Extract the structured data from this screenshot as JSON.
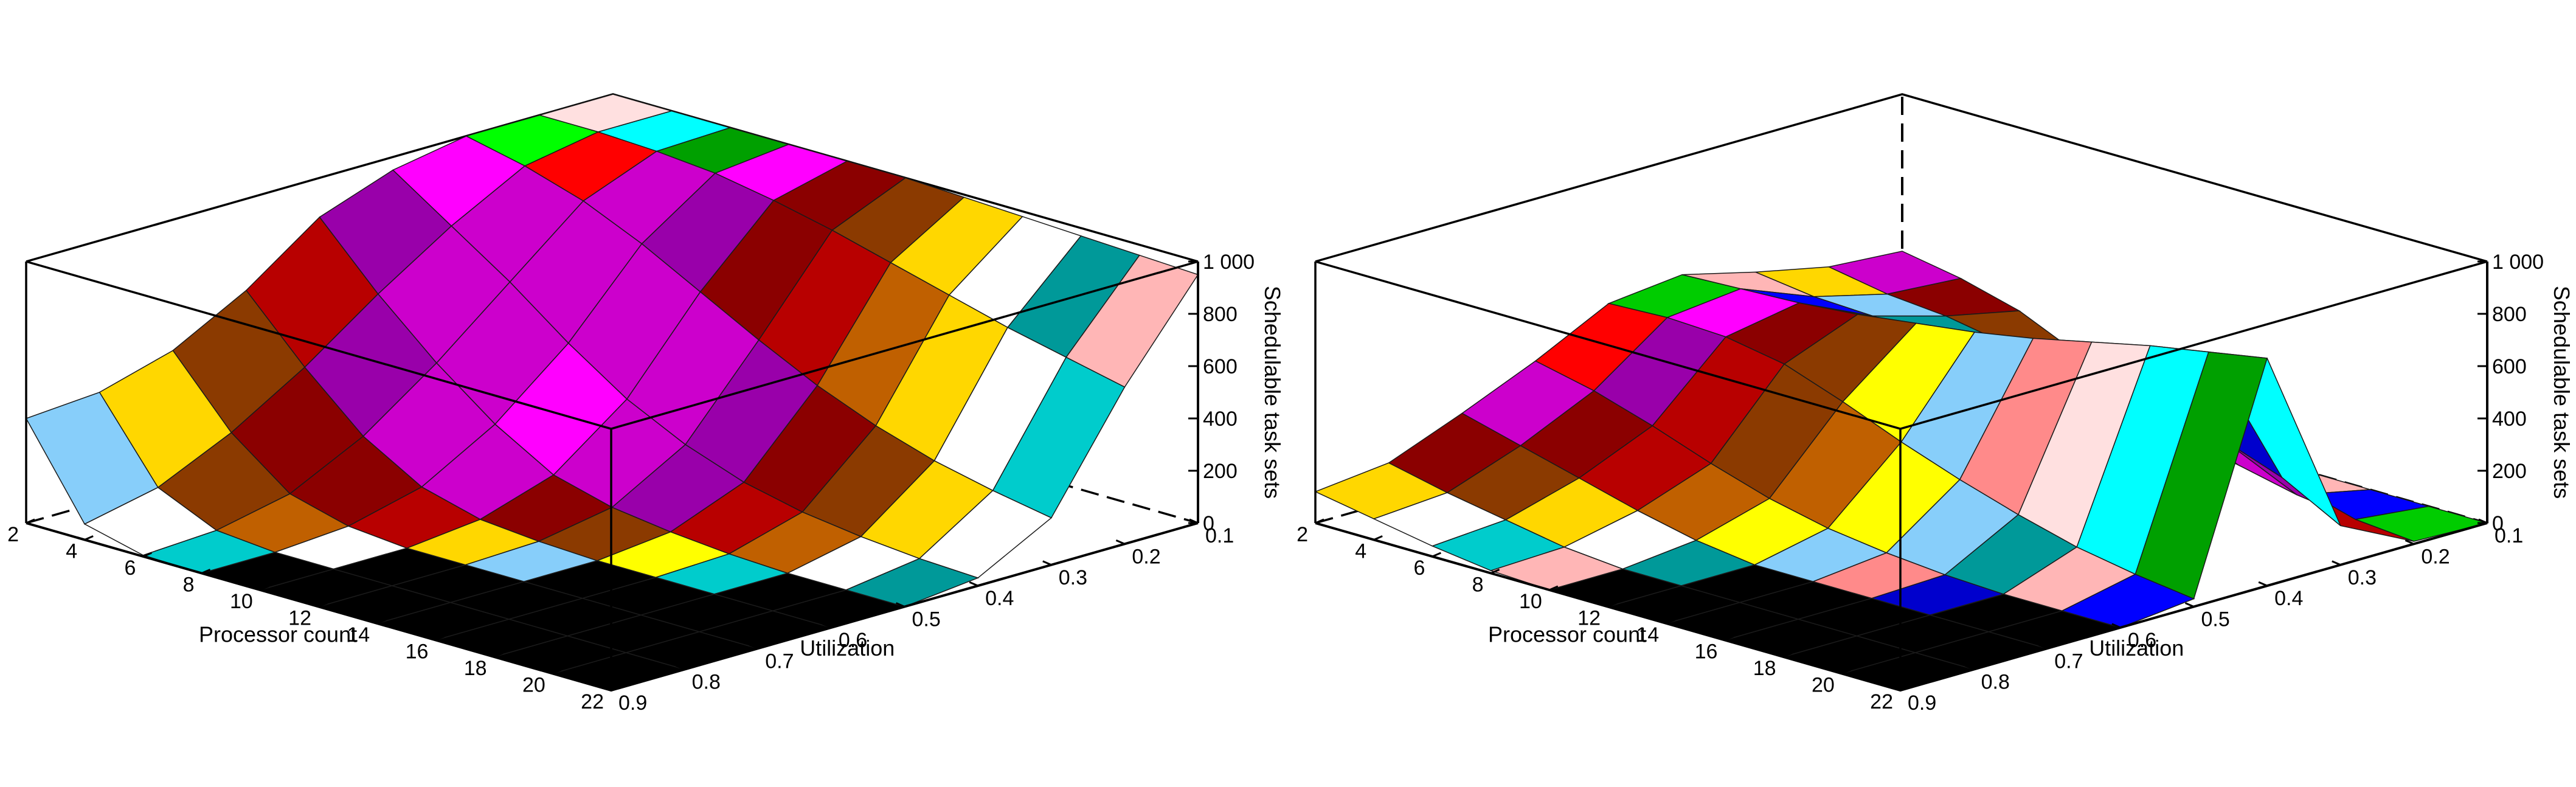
{
  "chart_data": [
    {
      "type": "surface3d",
      "panel": "left",
      "xlabel": "Processor count",
      "ylabel": "Utilization",
      "zlabel": "Schedulable task sets",
      "x_ticks": [
        2,
        4,
        6,
        8,
        10,
        12,
        14,
        16,
        18,
        20,
        22
      ],
      "y_ticks": [
        0.1,
        0.2,
        0.3,
        0.4,
        0.5,
        0.6,
        0.7,
        0.8,
        0.9
      ],
      "z_ticks": [
        "0",
        "200",
        "400",
        "600",
        "800",
        "1 000"
      ],
      "xlim": [
        2,
        22
      ],
      "ylim": [
        0.1,
        0.9
      ],
      "zlim": [
        0,
        1000
      ],
      "processors": [
        2,
        4,
        6,
        8,
        10,
        12,
        14,
        16,
        18,
        20,
        22
      ],
      "utilization": [
        0.1,
        0.2,
        0.3,
        0.4,
        0.5,
        0.6,
        0.7,
        0.8,
        0.9
      ],
      "z": [
        [
          1000,
          1000,
          1000,
          950,
          850,
          650,
          500,
          420,
          400
        ],
        [
          1000,
          1000,
          950,
          800,
          620,
          420,
          250,
          120,
          60
        ],
        [
          1000,
          990,
          880,
          650,
          420,
          220,
          80,
          20,
          5
        ],
        [
          1000,
          970,
          780,
          480,
          250,
          90,
          20,
          0,
          0
        ],
        [
          1000,
          930,
          660,
          330,
          120,
          30,
          0,
          0,
          0
        ],
        [
          1000,
          880,
          540,
          220,
          60,
          10,
          0,
          0,
          0
        ],
        [
          990,
          820,
          430,
          140,
          30,
          0,
          0,
          0,
          0
        ],
        [
          980,
          760,
          340,
          90,
          10,
          0,
          0,
          0,
          0
        ],
        [
          970,
          700,
          270,
          60,
          0,
          0,
          0,
          0,
          0
        ],
        [
          960,
          650,
          220,
          40,
          0,
          0,
          0,
          0,
          0
        ],
        [
          950,
          600,
          180,
          30,
          0,
          0,
          0,
          0,
          0
        ]
      ]
    },
    {
      "type": "surface3d",
      "panel": "right",
      "xlabel": "Processor count",
      "ylabel": "Utilization",
      "zlabel": "Schedulable task sets",
      "x_ticks": [
        2,
        4,
        6,
        8,
        10,
        12,
        14,
        16,
        18,
        20,
        22
      ],
      "y_ticks": [
        0.1,
        0.2,
        0.3,
        0.4,
        0.5,
        0.6,
        0.7,
        0.8,
        0.9
      ],
      "z_ticks": [
        "0",
        "200",
        "400",
        "600",
        "800",
        "1 000"
      ],
      "xlim": [
        2,
        22
      ],
      "ylim": [
        0.1,
        0.9
      ],
      "zlim": [
        0,
        1000
      ],
      "processors": [
        2,
        4,
        6,
        8,
        10,
        12,
        14,
        16,
        18,
        20,
        22
      ],
      "utilization": [
        0.1,
        0.2,
        0.3,
        0.4,
        0.5,
        0.6,
        0.7,
        0.8,
        0.9
      ],
      "z": [
        [
          400,
          420,
          480,
          550,
          520,
          380,
          260,
          150,
          120
        ],
        [
          360,
          380,
          450,
          560,
          530,
          330,
          200,
          100,
          80
        ],
        [
          300,
          360,
          440,
          570,
          520,
          260,
          140,
          60,
          40
        ],
        [
          200,
          320,
          430,
          590,
          480,
          180,
          80,
          20,
          10
        ],
        [
          120,
          270,
          430,
          620,
          400,
          110,
          30,
          0,
          0
        ],
        [
          60,
          220,
          440,
          650,
          310,
          60,
          0,
          0,
          0
        ],
        [
          20,
          160,
          420,
          690,
          230,
          30,
          0,
          0,
          0
        ],
        [
          0,
          110,
          400,
          740,
          160,
          10,
          0,
          0,
          0
        ],
        [
          0,
          60,
          350,
          790,
          100,
          0,
          0,
          0,
          0
        ],
        [
          0,
          30,
          270,
          830,
          60,
          0,
          0,
          0,
          0
        ],
        [
          0,
          10,
          150,
          870,
          30,
          0,
          0,
          0,
          0
        ]
      ]
    }
  ],
  "colors": {
    "low": "#000000",
    "palette": [
      "#0000cd",
      "#0000ff",
      "#00ffff",
      "#00ff00",
      "#00cc00",
      "#00a000",
      "#ff0000",
      "#ff00ff",
      "#cc00cc",
      "#9900aa",
      "#8b0000",
      "#b80000",
      "#8b3a00",
      "#c06000",
      "#ffd700",
      "#ffff00",
      "#ffffff",
      "#87cefa",
      "#00cccc",
      "#009999",
      "#ff8a8a",
      "#ffb6b6",
      "#ffe0e0"
    ]
  }
}
